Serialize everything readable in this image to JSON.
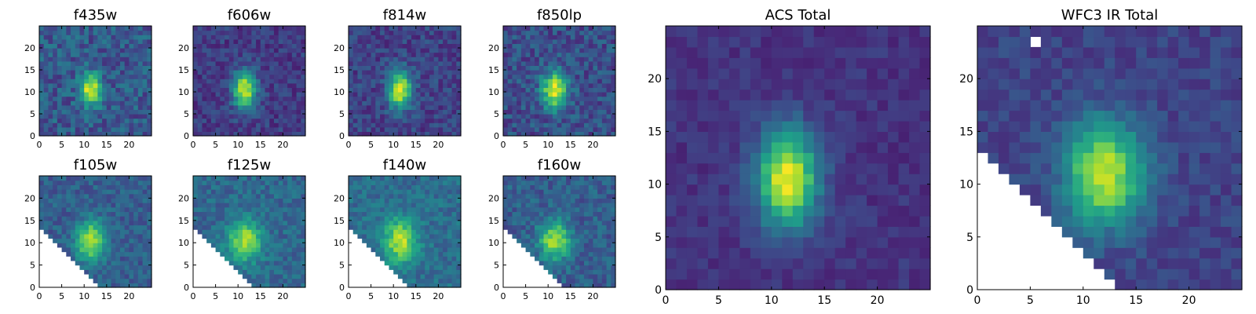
{
  "figure": {
    "background": "#ffffff"
  },
  "colormap": {
    "name": "viridis",
    "stops": [
      "#440154",
      "#482878",
      "#3e4989",
      "#31688e",
      "#26828e",
      "#1f9e89",
      "#35b779",
      "#6ece58",
      "#b5de2b",
      "#fde725"
    ]
  },
  "chart_data": [
    {
      "type": "heatmap",
      "title": "f435w",
      "grid_size": 25,
      "xticks": [
        0,
        5,
        10,
        15,
        20
      ],
      "yticks": [
        0,
        5,
        10,
        15,
        20
      ],
      "xlim": [
        0,
        25
      ],
      "ylim": [
        0,
        25
      ],
      "source": {
        "center_x": 11.5,
        "center_y": 10.5,
        "sigma_x": 1.6,
        "sigma_y": 2.6,
        "peak": 0.95,
        "background": 0.28,
        "noise": 0.14
      },
      "mask": null,
      "seed": 11
    },
    {
      "type": "heatmap",
      "title": "f606w",
      "grid_size": 25,
      "xticks": [
        0,
        5,
        10,
        15,
        20
      ],
      "yticks": [
        0,
        5,
        10,
        15,
        20
      ],
      "xlim": [
        0,
        25
      ],
      "ylim": [
        0,
        25
      ],
      "source": {
        "center_x": 11.5,
        "center_y": 10.5,
        "sigma_x": 1.8,
        "sigma_y": 3.0,
        "peak": 0.95,
        "background": 0.18,
        "noise": 0.1
      },
      "mask": null,
      "seed": 23
    },
    {
      "type": "heatmap",
      "title": "f814w",
      "grid_size": 25,
      "xticks": [
        0,
        5,
        10,
        15,
        20
      ],
      "yticks": [
        0,
        5,
        10,
        15,
        20
      ],
      "xlim": [
        0,
        25
      ],
      "ylim": [
        0,
        25
      ],
      "source": {
        "center_x": 11.5,
        "center_y": 10.5,
        "sigma_x": 1.8,
        "sigma_y": 3.0,
        "peak": 0.95,
        "background": 0.2,
        "noise": 0.11
      },
      "mask": null,
      "seed": 37
    },
    {
      "type": "heatmap",
      "title": "f850lp",
      "grid_size": 25,
      "xticks": [
        0,
        5,
        10,
        15,
        20
      ],
      "yticks": [
        0,
        5,
        10,
        15,
        20
      ],
      "xlim": [
        0,
        25
      ],
      "ylim": [
        0,
        25
      ],
      "source": {
        "center_x": 11.5,
        "center_y": 10.5,
        "sigma_x": 2.0,
        "sigma_y": 3.0,
        "peak": 0.95,
        "background": 0.24,
        "noise": 0.13
      },
      "mask": null,
      "seed": 41
    },
    {
      "type": "heatmap",
      "title": "ACS Total",
      "grid_size": 25,
      "xticks": [
        0,
        5,
        10,
        15,
        20
      ],
      "yticks": [
        0,
        5,
        10,
        15,
        20
      ],
      "xlim": [
        0,
        25
      ],
      "ylim": [
        0,
        25
      ],
      "source": {
        "center_x": 11.5,
        "center_y": 10.5,
        "sigma_x": 2.0,
        "sigma_y": 3.2,
        "peak": 0.98,
        "background": 0.15,
        "noise": 0.06
      },
      "mask": null,
      "seed": 53
    },
    {
      "type": "heatmap",
      "title": "f105w",
      "grid_size": 25,
      "xticks": [
        0,
        5,
        10,
        15,
        20
      ],
      "yticks": [
        0,
        5,
        10,
        15,
        20
      ],
      "xlim": [
        0,
        25
      ],
      "ylim": [
        0,
        25
      ],
      "source": {
        "center_x": 11.5,
        "center_y": 10.5,
        "sigma_x": 2.2,
        "sigma_y": 3.0,
        "peak": 0.92,
        "background": 0.3,
        "noise": 0.1
      },
      "mask": {
        "type": "lower-left-triangle",
        "x0": 13.5,
        "y0": 13.5
      },
      "seed": 61
    },
    {
      "type": "heatmap",
      "title": "f125w",
      "grid_size": 25,
      "xticks": [
        0,
        5,
        10,
        15,
        20
      ],
      "yticks": [
        0,
        5,
        10,
        15,
        20
      ],
      "xlim": [
        0,
        25
      ],
      "ylim": [
        0,
        25
      ],
      "source": {
        "center_x": 11.5,
        "center_y": 10.5,
        "sigma_x": 2.6,
        "sigma_y": 3.2,
        "peak": 0.88,
        "background": 0.34,
        "noise": 0.1
      },
      "mask": {
        "type": "lower-left-triangle",
        "x0": 13.5,
        "y0": 13.5
      },
      "seed": 67
    },
    {
      "type": "heatmap",
      "title": "f140w",
      "grid_size": 25,
      "xticks": [
        0,
        5,
        10,
        15,
        20
      ],
      "yticks": [
        0,
        5,
        10,
        15,
        20
      ],
      "xlim": [
        0,
        25
      ],
      "ylim": [
        0,
        25
      ],
      "source": {
        "center_x": 11.5,
        "center_y": 10.5,
        "sigma_x": 2.6,
        "sigma_y": 3.4,
        "peak": 0.9,
        "background": 0.36,
        "noise": 0.1
      },
      "mask": {
        "type": "lower-left-triangle",
        "x0": 13.5,
        "y0": 13.5
      },
      "seed": 71
    },
    {
      "type": "heatmap",
      "title": "f160w",
      "grid_size": 25,
      "xticks": [
        0,
        5,
        10,
        15,
        20
      ],
      "yticks": [
        0,
        5,
        10,
        15,
        20
      ],
      "xlim": [
        0,
        25
      ],
      "ylim": [
        0,
        25
      ],
      "source": {
        "center_x": 11.5,
        "center_y": 10.5,
        "sigma_x": 2.4,
        "sigma_y": 3.0,
        "peak": 0.88,
        "background": 0.3,
        "noise": 0.11
      },
      "mask": {
        "type": "lower-left-triangle",
        "x0": 13.5,
        "y0": 13.5
      },
      "seed": 79
    },
    {
      "type": "heatmap",
      "title": "WFC3 IR Total",
      "grid_size": 25,
      "xticks": [
        0,
        5,
        10,
        15,
        20
      ],
      "yticks": [
        0,
        5,
        10,
        15,
        20
      ],
      "xlim": [
        0,
        25
      ],
      "ylim": [
        0,
        25
      ],
      "source": {
        "center_x": 12.0,
        "center_y": 11.0,
        "sigma_x": 2.6,
        "sigma_y": 3.4,
        "peak": 0.92,
        "background": 0.2,
        "noise": 0.07
      },
      "mask": {
        "type": "lower-left-triangle",
        "x0": 13.5,
        "y0": 13.5,
        "extra_blank_pixels": [
          [
            5,
            23
          ]
        ]
      },
      "seed": 97
    }
  ]
}
